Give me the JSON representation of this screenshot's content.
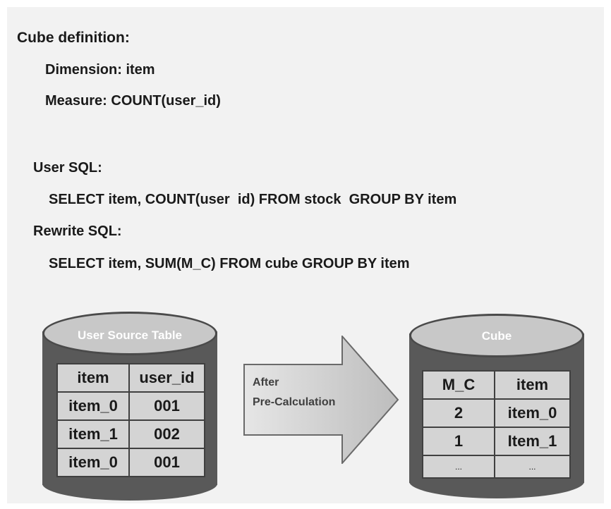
{
  "cube_definition": {
    "heading": "Cube definition:",
    "dimension": "Dimension: item",
    "measure": "Measure: COUNT(user_id)"
  },
  "user_sql": {
    "heading": "User SQL:",
    "query": "SELECT item, COUNT(user  id) FROM stock  GROUP BY item"
  },
  "rewrite_sql": {
    "heading": "Rewrite SQL:",
    "query": "SELECT item, SUM(M_C) FROM cube GROUP BY item"
  },
  "source_table": {
    "title": "User Source Table",
    "headers": [
      "item",
      "user_id"
    ],
    "rows": [
      [
        "item_0",
        "001"
      ],
      [
        "item_1",
        "002"
      ],
      [
        "item_0",
        "001"
      ]
    ]
  },
  "arrow": {
    "line1": "After",
    "line2": "Pre-Calculation"
  },
  "cube_table": {
    "title": "Cube",
    "headers": [
      "M_C",
      "item"
    ],
    "rows": [
      [
        "2",
        "item_0"
      ],
      [
        "1",
        "Item_1"
      ],
      [
        "...",
        "..."
      ]
    ]
  },
  "colors": {
    "panel_bg": "#f2f2f2",
    "cylinder_body": "#595959",
    "cylinder_top": "#c8c8c8",
    "table_cell": "#d4d4d4"
  }
}
